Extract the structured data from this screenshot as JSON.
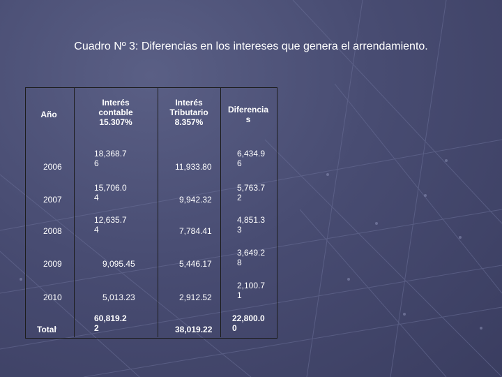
{
  "title": "Cuadro Nº 3: Diferencias en los intereses que genera el arrendamiento.",
  "table": {
    "headers": {
      "year": "Año",
      "contable": "Interés\ncontable\n15.307%",
      "tributario": "Interés\nTributario\n8.357%",
      "diferencias": "Diferencia\ns"
    },
    "rows": [
      {
        "year": "2006",
        "contable": "18,368.7\n6",
        "tributario": "11,933.80",
        "diferencia": "6,434.9\n6"
      },
      {
        "year": "2007",
        "contable": "15,706.0\n4",
        "tributario": "9,942.32",
        "diferencia": "5,763.7\n2"
      },
      {
        "year": "2008",
        "contable": "12,635.7\n4",
        "tributario": "7,784.41",
        "diferencia": "4,851.3\n3"
      },
      {
        "year": "2009",
        "contable": "9,095.45",
        "tributario": "5,446.17",
        "diferencia": "3,649.2\n8"
      },
      {
        "year": "2010",
        "contable": "5,013.23",
        "tributario": "2,912.52",
        "diferencia": "2,100.7\n1"
      },
      {
        "year": "Total",
        "contable": "60,819.2\n2",
        "tributario": "38,019.22",
        "diferencia": "22,800.0\n0"
      }
    ]
  }
}
